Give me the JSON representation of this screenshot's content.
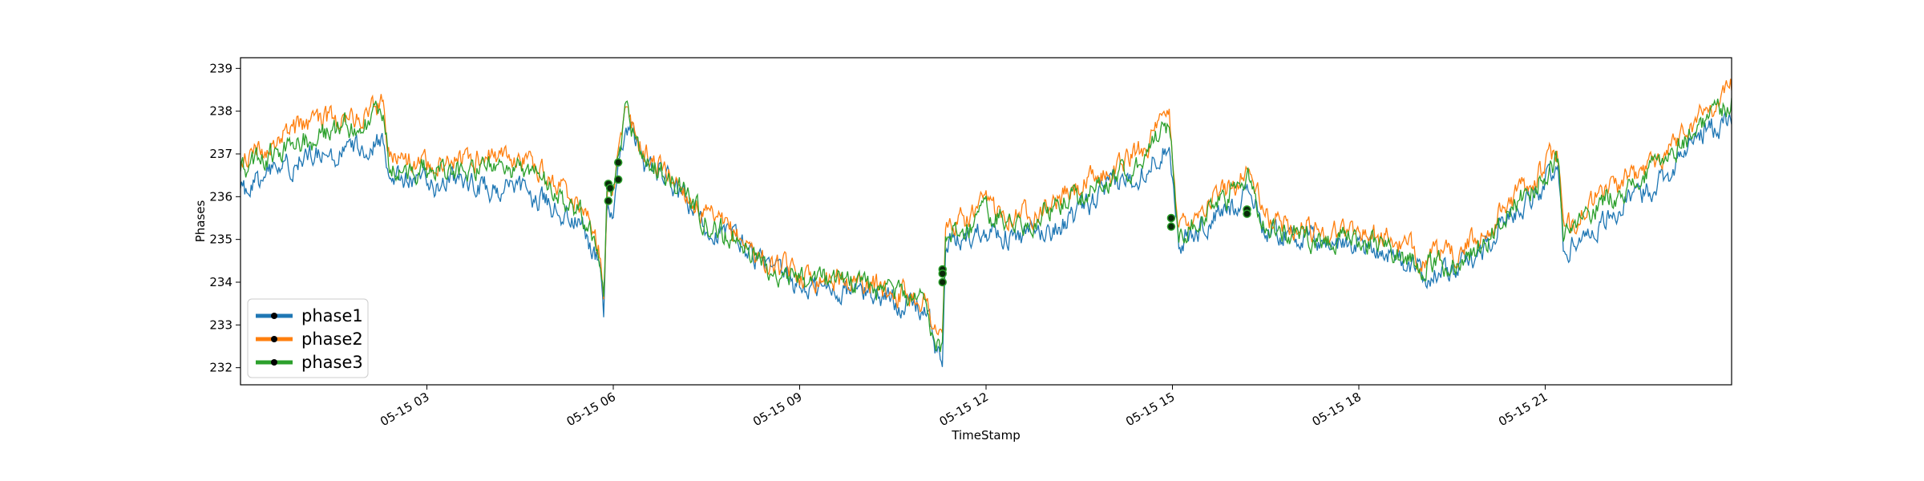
{
  "chart_data": {
    "type": "line",
    "title": "",
    "xlabel": "TimeStamp",
    "ylabel": "Phases",
    "xlim": [
      "2024-05-15 00:00",
      "2024-05-16 00:00"
    ],
    "ylim": [
      231.6,
      239.25
    ],
    "x_ticks": [
      "05-15 03",
      "05-15 06",
      "05-15 09",
      "05-15 12",
      "05-15 15",
      "05-15 18",
      "05-15 21"
    ],
    "y_ticks": [
      232,
      233,
      234,
      235,
      236,
      237,
      238,
      239
    ],
    "grid": false,
    "legend_position": "lower-left",
    "x_hours": [
      0,
      0.5,
      1,
      1.5,
      2,
      2.3,
      2.4,
      3,
      3.5,
      4,
      4.5,
      5,
      5.5,
      5.8,
      5.85,
      5.9,
      6,
      6.2,
      6.5,
      7,
      7.5,
      8,
      8.5,
      9,
      9.5,
      10,
      10.5,
      11,
      11.3,
      11.35,
      11.5,
      12,
      12.5,
      13,
      13.5,
      14,
      14.5,
      14.9,
      14.95,
      15.1,
      15.5,
      16,
      16.2,
      16.5,
      17,
      17.5,
      18,
      18.5,
      19,
      19.5,
      20,
      20.5,
      21,
      21.2,
      21.3,
      21.5,
      22,
      22.5,
      23,
      23.5,
      24
    ],
    "series": [
      {
        "name": "phase1",
        "color": "#1f77b4",
        "values": [
          236.0,
          236.6,
          236.9,
          236.9,
          237.2,
          237.4,
          236.5,
          236.3,
          236.3,
          236.2,
          236.1,
          235.8,
          235.3,
          234.3,
          233.3,
          235.9,
          235.5,
          237.8,
          236.8,
          236.2,
          235.3,
          235.0,
          234.3,
          233.9,
          233.8,
          233.8,
          233.6,
          233.4,
          232.0,
          234.9,
          234.9,
          235.3,
          235.0,
          235.2,
          235.6,
          236.2,
          236.6,
          237.2,
          237.4,
          234.9,
          235.3,
          235.8,
          236.3,
          235.2,
          235.1,
          234.9,
          234.9,
          234.7,
          234.2,
          234.2,
          234.8,
          235.7,
          236.3,
          236.7,
          234.7,
          235.0,
          235.5,
          236.0,
          236.6,
          237.5,
          237.8
        ]
      },
      {
        "name": "phase2",
        "color": "#ff7f0e",
        "values": [
          236.9,
          237.3,
          237.6,
          237.8,
          238.0,
          238.2,
          236.9,
          236.8,
          236.8,
          236.9,
          236.9,
          236.4,
          235.8,
          234.7,
          233.8,
          236.3,
          236.3,
          237.9,
          237.0,
          236.4,
          235.5,
          235.1,
          234.4,
          234.2,
          234.1,
          234.0,
          233.8,
          233.6,
          232.6,
          235.3,
          235.3,
          235.8,
          235.6,
          235.8,
          236.2,
          236.6,
          237.1,
          237.8,
          237.9,
          235.3,
          235.8,
          236.3,
          236.7,
          235.5,
          235.3,
          235.2,
          235.2,
          235.0,
          234.6,
          234.6,
          235.1,
          236.0,
          236.7,
          237.1,
          235.1,
          235.5,
          236.2,
          236.5,
          237.2,
          237.9,
          238.6
        ]
      },
      {
        "name": "phase3",
        "color": "#2ca02c",
        "values": [
          236.6,
          237.0,
          237.3,
          237.5,
          237.7,
          238.0,
          236.7,
          236.6,
          236.6,
          236.7,
          236.7,
          236.2,
          235.6,
          234.5,
          233.6,
          236.1,
          236.0,
          238.0,
          236.9,
          236.3,
          235.4,
          235.0,
          234.3,
          234.1,
          234.0,
          233.9,
          233.7,
          233.5,
          232.3,
          235.1,
          235.1,
          235.6,
          235.4,
          235.6,
          236.0,
          236.4,
          236.9,
          237.6,
          237.7,
          235.1,
          235.6,
          236.1,
          236.5,
          235.3,
          235.1,
          235.0,
          235.0,
          234.8,
          234.4,
          234.4,
          234.9,
          235.8,
          236.5,
          236.9,
          234.9,
          235.3,
          236.0,
          236.3,
          237.0,
          237.7,
          238.3
        ]
      }
    ],
    "markers": [
      {
        "x": 5.92,
        "y": 236.3
      },
      {
        "x": 5.92,
        "y": 235.9
      },
      {
        "x": 5.95,
        "y": 236.2
      },
      {
        "x": 6.08,
        "y": 236.8
      },
      {
        "x": 6.08,
        "y": 236.4
      },
      {
        "x": 11.3,
        "y": 234.3
      },
      {
        "x": 11.3,
        "y": 234.2
      },
      {
        "x": 11.3,
        "y": 234.0
      },
      {
        "x": 14.98,
        "y": 235.5
      },
      {
        "x": 14.98,
        "y": 235.3
      },
      {
        "x": 16.2,
        "y": 235.7
      },
      {
        "x": 16.2,
        "y": 235.6
      }
    ]
  }
}
